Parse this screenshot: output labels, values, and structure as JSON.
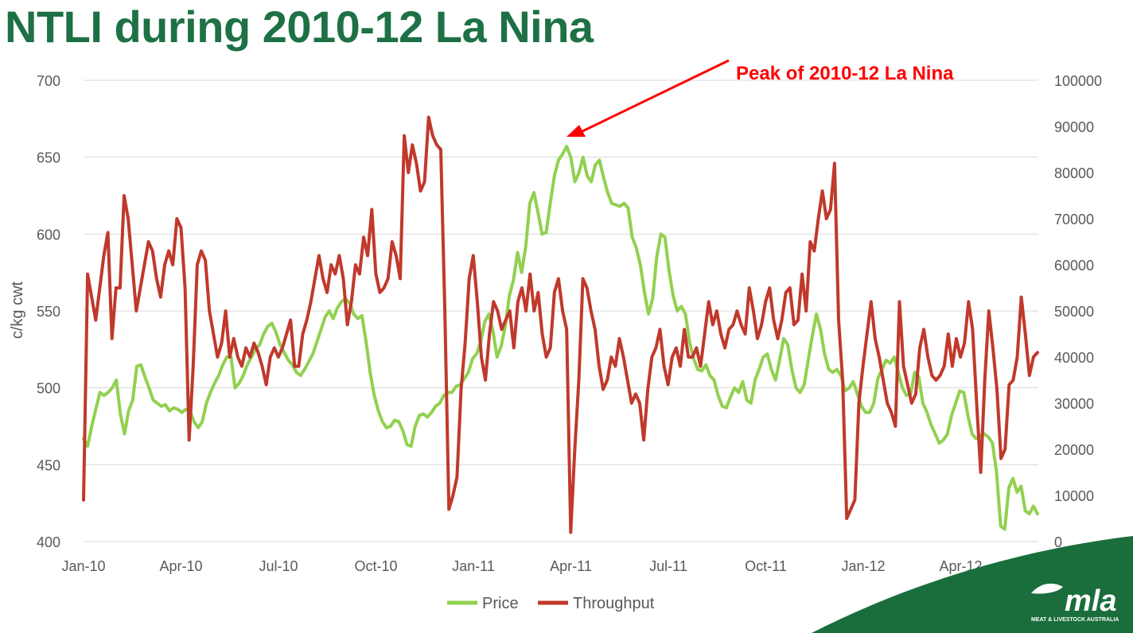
{
  "title": "NTLI during 2010-12 La Nina",
  "colors": {
    "title": "#1e7145",
    "price": "#92d050",
    "throughput": "#c0392b",
    "annotation": "#ff0000",
    "gridline": "#d9d9d9",
    "logo_green": "#1a6e3c"
  },
  "annotation": {
    "label": "Peak of 2010-12 La Nina"
  },
  "logo": {
    "name": "mla",
    "tagline": "MEAT & LIVESTOCK AUSTRALIA",
    "icon": "mla-logo-icon"
  },
  "chart_data": {
    "type": "line",
    "title": "NTLI during 2010-12 La Nina",
    "ylabel": "c/kg cwt",
    "y2label": "",
    "ylim": [
      400,
      700
    ],
    "y2lim": [
      0,
      100000
    ],
    "yticks": [
      "400",
      "450",
      "500",
      "550",
      "600",
      "650",
      "700"
    ],
    "y2ticks": [
      "0",
      "10000",
      "20000",
      "30000",
      "40000",
      "50000",
      "60000",
      "70000",
      "80000",
      "90000",
      "100000"
    ],
    "xticks": [
      "Jan-10",
      "Apr-10",
      "Jul-10",
      "Oct-10",
      "Jan-11",
      "Apr-11",
      "Jul-11",
      "Oct-11",
      "Jan-12",
      "Apr-12"
    ],
    "x_period": "weekly, Jan-10 to May-12",
    "grid": true,
    "legend_position": "bottom",
    "series": [
      {
        "name": "Price",
        "axis": "left",
        "values": [
          467,
          462,
          475,
          486,
          497,
          495,
          497,
          500,
          505,
          483,
          470,
          485,
          492,
          514,
          515,
          507,
          500,
          492,
          490,
          488,
          489,
          485,
          487,
          486,
          484,
          486,
          485,
          478,
          474,
          478,
          490,
          497,
          503,
          508,
          515,
          520,
          520,
          500,
          503,
          508,
          515,
          520,
          525,
          528,
          535,
          540,
          542,
          536,
          528,
          523,
          518,
          515,
          510,
          508,
          512,
          517,
          522,
          530,
          538,
          546,
          550,
          545,
          552,
          556,
          558,
          555,
          548,
          545,
          547,
          530,
          510,
          495,
          485,
          478,
          474,
          475,
          479,
          478,
          472,
          463,
          462,
          475,
          482,
          483,
          481,
          484,
          488,
          490,
          495,
          497,
          497,
          501,
          502,
          506,
          510,
          519,
          522,
          530,
          543,
          548,
          537,
          520,
          527,
          540,
          560,
          570,
          588,
          575,
          592,
          620,
          627,
          614,
          600,
          601,
          620,
          638,
          648,
          652,
          657,
          650,
          634,
          640,
          650,
          638,
          634,
          645,
          648,
          637,
          627,
          620,
          619,
          618,
          620,
          617,
          598,
          591,
          580,
          562,
          548,
          558,
          585,
          600,
          598,
          576,
          560,
          550,
          553,
          548,
          530,
          519,
          512,
          511,
          515,
          508,
          505,
          495,
          488,
          487,
          494,
          500,
          497,
          504,
          492,
          490,
          505,
          512,
          520,
          522,
          512,
          505,
          518,
          532,
          528,
          512,
          500,
          497,
          502,
          518,
          534,
          548,
          538,
          522,
          512,
          510,
          512,
          508,
          498,
          500,
          504,
          496,
          488,
          484,
          484,
          490,
          506,
          512,
          518,
          516,
          520,
          510,
          500,
          495,
          496,
          510,
          507,
          490,
          484,
          476,
          470,
          464,
          466,
          470,
          482,
          490,
          498,
          497,
          482,
          470,
          467,
          469,
          470,
          468,
          464,
          445,
          410,
          408,
          435,
          441,
          432,
          436,
          420,
          418,
          423,
          418
        ],
        "note": "values estimated from the left axis"
      },
      {
        "name": "Throughput",
        "axis": "right",
        "values": [
          9000,
          58000,
          53000,
          48000,
          55000,
          62000,
          67000,
          44000,
          55000,
          55000,
          75000,
          70000,
          60000,
          50000,
          55000,
          60000,
          65000,
          63000,
          57000,
          53000,
          60000,
          63000,
          60000,
          70000,
          68000,
          55000,
          22000,
          38000,
          60000,
          63000,
          61000,
          50000,
          45000,
          40000,
          43000,
          50000,
          40000,
          44000,
          40000,
          38000,
          42000,
          40000,
          43000,
          41000,
          38000,
          34000,
          40000,
          42000,
          40000,
          42000,
          45000,
          48000,
          38000,
          38000,
          45000,
          48000,
          52000,
          57000,
          62000,
          57000,
          54000,
          60000,
          58000,
          62000,
          57000,
          47000,
          52000,
          60000,
          58000,
          66000,
          62000,
          72000,
          58000,
          54000,
          55000,
          57000,
          65000,
          62000,
          57000,
          88000,
          80000,
          86000,
          82000,
          76000,
          78000,
          92000,
          88000,
          86000,
          85000,
          50000,
          7000,
          10000,
          14000,
          33000,
          43000,
          57000,
          62000,
          52000,
          40000,
          35000,
          45000,
          52000,
          50000,
          46000,
          48000,
          50000,
          42000,
          52000,
          55000,
          50000,
          58000,
          50000,
          54000,
          45000,
          40000,
          42000,
          54000,
          57000,
          50000,
          46000,
          2000,
          20000,
          35000,
          57000,
          55000,
          50000,
          46000,
          38000,
          33000,
          35000,
          40000,
          38000,
          44000,
          40000,
          35000,
          30000,
          32000,
          30000,
          22000,
          33000,
          40000,
          42000,
          46000,
          38000,
          34000,
          40000,
          42000,
          38000,
          46000,
          40000,
          40000,
          42000,
          38000,
          45000,
          52000,
          47000,
          50000,
          45000,
          42000,
          46000,
          47000,
          50000,
          47000,
          45000,
          55000,
          50000,
          44000,
          47000,
          52000,
          55000,
          48000,
          44000,
          48000,
          54000,
          55000,
          47000,
          48000,
          58000,
          50000,
          65000,
          63000,
          70000,
          76000,
          70000,
          72000,
          82000,
          48000,
          35000,
          5000,
          7000,
          9000,
          30000,
          38000,
          45000,
          52000,
          44000,
          40000,
          35000,
          30000,
          28000,
          25000,
          52000,
          38000,
          34000,
          30000,
          32000,
          42000,
          46000,
          40000,
          36000,
          35000,
          36000,
          38000,
          45000,
          38000,
          44000,
          40000,
          43000,
          52000,
          46000,
          30000,
          15000,
          35000,
          50000,
          42000,
          33000,
          18000,
          20000,
          34000,
          35000,
          40000,
          53000,
          45000,
          36000,
          40000,
          41000
        ],
        "note": "values estimated from the right axis"
      }
    ]
  }
}
